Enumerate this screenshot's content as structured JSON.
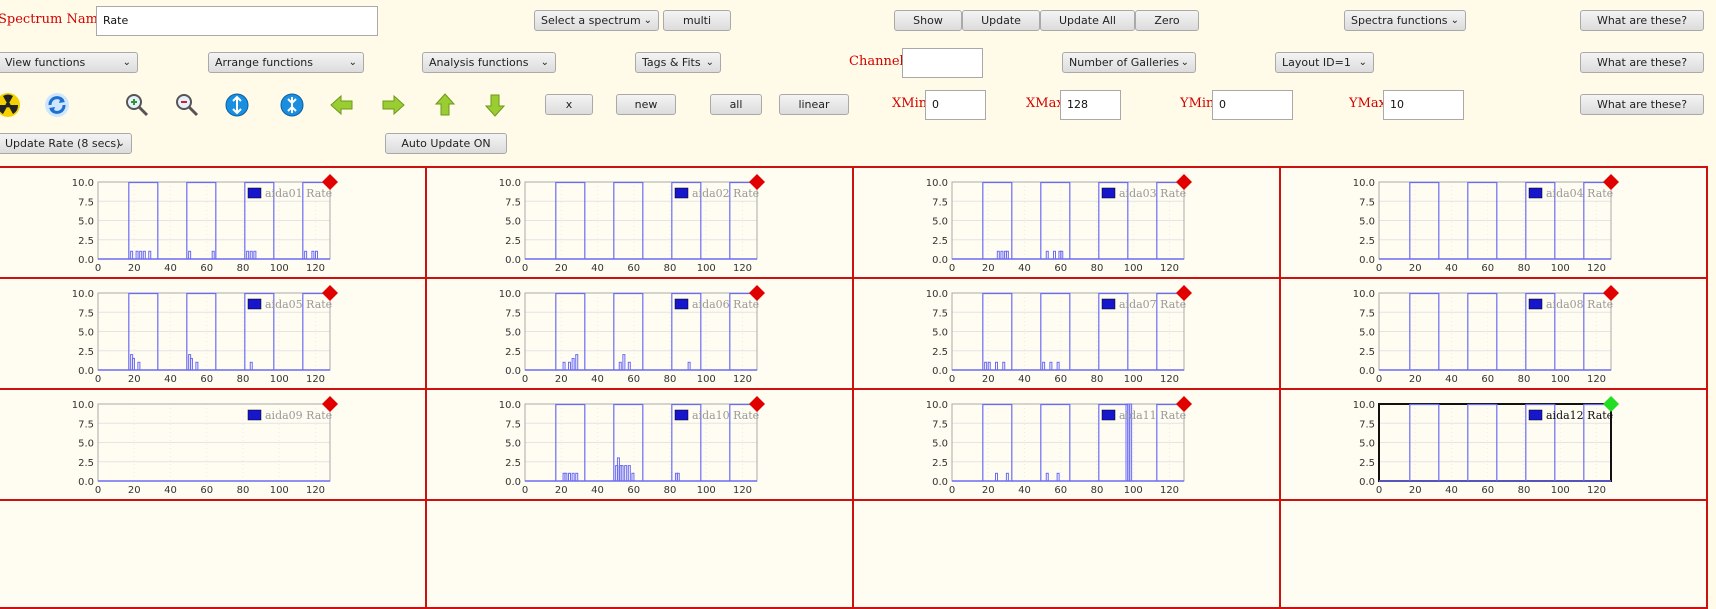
{
  "toolbar": {
    "spectrum_name_label": "Spectrum Name:",
    "spectrum_name_value": "Rate",
    "select_spectrum": "Select a spectrum",
    "multi": "multi",
    "show": "Show",
    "update": "Update",
    "update_all": "Update All",
    "zero": "Zero",
    "spectra_functions": "Spectra functions",
    "help1": "What are these?",
    "view_functions": "View functions",
    "arrange_functions": "Arrange functions",
    "analysis_functions": "Analysis functions",
    "tags_fits": "Tags & Fits",
    "channel_label": "Channel:",
    "channel_value": "",
    "num_galleries": "Number of Galleries",
    "layout_id": "Layout ID=1",
    "help2": "What are these?",
    "x": "x",
    "new": "new",
    "all": "all",
    "linear": "linear",
    "xmin_label": "XMin",
    "xmin_value": "0",
    "xmax_label": "XMax",
    "xmax_value": "128",
    "ymin_label": "YMin",
    "ymin_value": "0",
    "ymax_label": "YMax",
    "ymax_value": "10",
    "help3": "What are these?",
    "update_rate": "Update Rate (8 secs)",
    "auto_update": "Auto Update ON"
  },
  "icons": [
    "radiation-icon",
    "refresh-icon",
    "zoom-in-icon",
    "zoom-out-icon",
    "expand-y-icon",
    "compress-y-icon",
    "arrow-left-icon",
    "arrow-right-icon",
    "arrow-up-icon",
    "arrow-down-icon"
  ],
  "colors": {
    "accent": "#d40000",
    "background": "#fffbe8",
    "series": "#6b6bf5",
    "marker_red": "#e00000",
    "marker_green": "#22dd22"
  },
  "chart_data": [
    {
      "type": "line",
      "title": "aida01 Rate",
      "series": [
        {
          "name": "aida01 Rate"
        }
      ],
      "xlim": [
        0,
        128
      ],
      "ylim": [
        0,
        10
      ],
      "xticks": [
        "0",
        "20",
        "40",
        "60",
        "80",
        "100",
        "120"
      ],
      "yticks": [
        "0.0",
        "2.5",
        "5.0",
        "7.5",
        "10.0"
      ],
      "blocks": [
        [
          17,
          33
        ],
        [
          49,
          65
        ],
        [
          81,
          97
        ],
        [
          113,
          128
        ]
      ],
      "bumps": [
        [
          18,
          1
        ],
        [
          20,
          0
        ],
        [
          21,
          1
        ],
        [
          23,
          1
        ],
        [
          24,
          0
        ],
        [
          25,
          1
        ],
        [
          27,
          0
        ],
        [
          28,
          1
        ],
        [
          50,
          1
        ],
        [
          63,
          1
        ],
        [
          82,
          1
        ],
        [
          84,
          1
        ],
        [
          86,
          1
        ],
        [
          114,
          1
        ],
        [
          116,
          0
        ],
        [
          118,
          1
        ],
        [
          120,
          1
        ]
      ],
      "marker": "red",
      "selected": false
    },
    {
      "type": "line",
      "title": "aida02 Rate",
      "series": [
        {
          "name": "aida02 Rate"
        }
      ],
      "xlim": [
        0,
        128
      ],
      "ylim": [
        0,
        10
      ],
      "xticks": [
        "0",
        "20",
        "40",
        "60",
        "80",
        "100",
        "120"
      ],
      "yticks": [
        "0.0",
        "2.5",
        "5.0",
        "7.5",
        "10.0"
      ],
      "blocks": [
        [
          17,
          33
        ],
        [
          49,
          65
        ],
        [
          81,
          97
        ],
        [
          113,
          128
        ]
      ],
      "bumps": [],
      "marker": "red",
      "selected": false
    },
    {
      "type": "line",
      "title": "aida03 Rate",
      "series": [
        {
          "name": "aida03 Rate"
        }
      ],
      "xlim": [
        0,
        128
      ],
      "ylim": [
        0,
        10
      ],
      "xticks": [
        "0",
        "20",
        "40",
        "60",
        "80",
        "100",
        "120"
      ],
      "yticks": [
        "0.0",
        "2.5",
        "5.0",
        "7.5",
        "10.0"
      ],
      "blocks": [
        [
          17,
          33
        ],
        [
          49,
          65
        ],
        [
          81,
          97
        ],
        [
          113,
          128
        ]
      ],
      "bumps": [
        [
          25,
          1
        ],
        [
          26,
          0
        ],
        [
          27,
          1
        ],
        [
          28,
          0
        ],
        [
          29,
          1
        ],
        [
          30,
          1
        ],
        [
          52,
          1
        ],
        [
          54,
          0
        ],
        [
          56,
          1
        ],
        [
          58,
          0
        ],
        [
          59,
          1
        ],
        [
          60,
          1
        ]
      ],
      "marker": "red",
      "selected": false
    },
    {
      "type": "line",
      "title": "aida04 Rate",
      "series": [
        {
          "name": "aida04 Rate"
        }
      ],
      "xlim": [
        0,
        128
      ],
      "ylim": [
        0,
        10
      ],
      "xticks": [
        "0",
        "20",
        "40",
        "60",
        "80",
        "100",
        "120"
      ],
      "yticks": [
        "0.0",
        "2.5",
        "5.0",
        "7.5",
        "10.0"
      ],
      "blocks": [
        [
          17,
          33
        ],
        [
          49,
          65
        ],
        [
          81,
          97
        ],
        [
          113,
          128
        ]
      ],
      "bumps": [],
      "marker": "red",
      "selected": false
    },
    {
      "type": "line",
      "title": "aida05 Rate",
      "series": [
        {
          "name": "aida05 Rate"
        }
      ],
      "xlim": [
        0,
        128
      ],
      "ylim": [
        0,
        10
      ],
      "xticks": [
        "0",
        "20",
        "40",
        "60",
        "80",
        "100",
        "120"
      ],
      "yticks": [
        "0.0",
        "2.5",
        "5.0",
        "7.5",
        "10.0"
      ],
      "blocks": [
        [
          17,
          33
        ],
        [
          49,
          65
        ],
        [
          81,
          97
        ],
        [
          113,
          128
        ]
      ],
      "bumps": [
        [
          18,
          2
        ],
        [
          19,
          1.5
        ],
        [
          20,
          0
        ],
        [
          22,
          1
        ],
        [
          50,
          2
        ],
        [
          51,
          1.5
        ],
        [
          52,
          0
        ],
        [
          54,
          1
        ],
        [
          84,
          1
        ]
      ],
      "marker": "red",
      "selected": false
    },
    {
      "type": "line",
      "title": "aida06 Rate",
      "series": [
        {
          "name": "aida06 Rate"
        }
      ],
      "xlim": [
        0,
        128
      ],
      "ylim": [
        0,
        10
      ],
      "xticks": [
        "0",
        "20",
        "40",
        "60",
        "80",
        "100",
        "120"
      ],
      "yticks": [
        "0.0",
        "2.5",
        "5.0",
        "7.5",
        "10.0"
      ],
      "blocks": [
        [
          17,
          33
        ],
        [
          49,
          65
        ],
        [
          81,
          97
        ],
        [
          113,
          128
        ]
      ],
      "bumps": [
        [
          21,
          1
        ],
        [
          24,
          1
        ],
        [
          26,
          1.5
        ],
        [
          28,
          2
        ],
        [
          52,
          1
        ],
        [
          54,
          2
        ],
        [
          57,
          1
        ],
        [
          90,
          1
        ]
      ],
      "marker": "red",
      "selected": false
    },
    {
      "type": "line",
      "title": "aida07 Rate",
      "series": [
        {
          "name": "aida07 Rate"
        }
      ],
      "xlim": [
        0,
        128
      ],
      "ylim": [
        0,
        10
      ],
      "xticks": [
        "0",
        "20",
        "40",
        "60",
        "80",
        "100",
        "120"
      ],
      "yticks": [
        "0.0",
        "2.5",
        "5.0",
        "7.5",
        "10.0"
      ],
      "blocks": [
        [
          17,
          33
        ],
        [
          49,
          65
        ],
        [
          81,
          97
        ],
        [
          113,
          128
        ]
      ],
      "bumps": [
        [
          18,
          1
        ],
        [
          20,
          1
        ],
        [
          22,
          0
        ],
        [
          24,
          1
        ],
        [
          28,
          1
        ],
        [
          50,
          1
        ],
        [
          54,
          1
        ],
        [
          58,
          1
        ]
      ],
      "marker": "red",
      "selected": false
    },
    {
      "type": "line",
      "title": "aida08 Rate",
      "series": [
        {
          "name": "aida08 Rate"
        }
      ],
      "xlim": [
        0,
        128
      ],
      "ylim": [
        0,
        10
      ],
      "xticks": [
        "0",
        "20",
        "40",
        "60",
        "80",
        "100",
        "120"
      ],
      "yticks": [
        "0.0",
        "2.5",
        "5.0",
        "7.5",
        "10.0"
      ],
      "blocks": [
        [
          17,
          33
        ],
        [
          49,
          65
        ],
        [
          81,
          97
        ],
        [
          113,
          128
        ]
      ],
      "bumps": [],
      "marker": "red",
      "selected": false
    },
    {
      "type": "line",
      "title": "aida09 Rate",
      "series": [
        {
          "name": "aida09 Rate"
        }
      ],
      "xlim": [
        0,
        128
      ],
      "ylim": [
        0,
        10
      ],
      "xticks": [
        "0",
        "20",
        "40",
        "60",
        "80",
        "100",
        "120"
      ],
      "yticks": [
        "0.0",
        "2.5",
        "5.0",
        "7.5",
        "10.0"
      ],
      "blocks": [],
      "bumps": [],
      "marker": "red",
      "selected": false
    },
    {
      "type": "line",
      "title": "aida10 Rate",
      "series": [
        {
          "name": "aida10 Rate"
        }
      ],
      "xlim": [
        0,
        128
      ],
      "ylim": [
        0,
        10
      ],
      "xticks": [
        "0",
        "20",
        "40",
        "60",
        "80",
        "100",
        "120"
      ],
      "yticks": [
        "0.0",
        "2.5",
        "5.0",
        "7.5",
        "10.0"
      ],
      "blocks": [
        [
          17,
          33
        ],
        [
          49,
          65
        ],
        [
          81,
          97
        ],
        [
          113,
          128
        ]
      ],
      "bumps": [
        [
          21,
          1
        ],
        [
          22,
          1
        ],
        [
          24,
          1
        ],
        [
          26,
          1
        ],
        [
          28,
          1
        ],
        [
          50,
          2
        ],
        [
          51,
          3
        ],
        [
          52,
          2
        ],
        [
          53,
          2
        ],
        [
          55,
          2
        ],
        [
          57,
          2
        ],
        [
          59,
          1
        ],
        [
          83,
          1
        ],
        [
          84,
          1
        ]
      ],
      "marker": "red",
      "selected": false
    },
    {
      "type": "line",
      "title": "aida11 Rate",
      "series": [
        {
          "name": "aida11 Rate"
        }
      ],
      "xlim": [
        0,
        128
      ],
      "ylim": [
        0,
        10
      ],
      "xticks": [
        "0",
        "20",
        "40",
        "60",
        "80",
        "100",
        "120"
      ],
      "yticks": [
        "0.0",
        "2.5",
        "5.0",
        "7.5",
        "10.0"
      ],
      "blocks": [
        [
          17,
          33
        ],
        [
          49,
          65
        ],
        [
          81,
          97
        ],
        [
          113,
          128
        ]
      ],
      "bumps": [
        [
          24,
          1
        ],
        [
          30,
          1
        ],
        [
          52,
          1
        ],
        [
          58,
          1
        ],
        [
          96,
          10
        ],
        [
          97,
          10
        ],
        [
          98,
          10
        ]
      ],
      "marker": "red",
      "selected": false
    },
    {
      "type": "line",
      "title": "aida12 Rate",
      "series": [
        {
          "name": "aida12 Rate"
        }
      ],
      "xlim": [
        0,
        128
      ],
      "ylim": [
        0,
        10
      ],
      "xticks": [
        "0",
        "20",
        "40",
        "60",
        "80",
        "100",
        "120"
      ],
      "yticks": [
        "0.0",
        "2.5",
        "5.0",
        "7.5",
        "10.0"
      ],
      "blocks": [
        [
          17,
          33
        ],
        [
          49,
          65
        ],
        [
          81,
          97
        ],
        [
          113,
          128
        ]
      ],
      "bumps": [],
      "marker": "green",
      "selected": true
    }
  ]
}
